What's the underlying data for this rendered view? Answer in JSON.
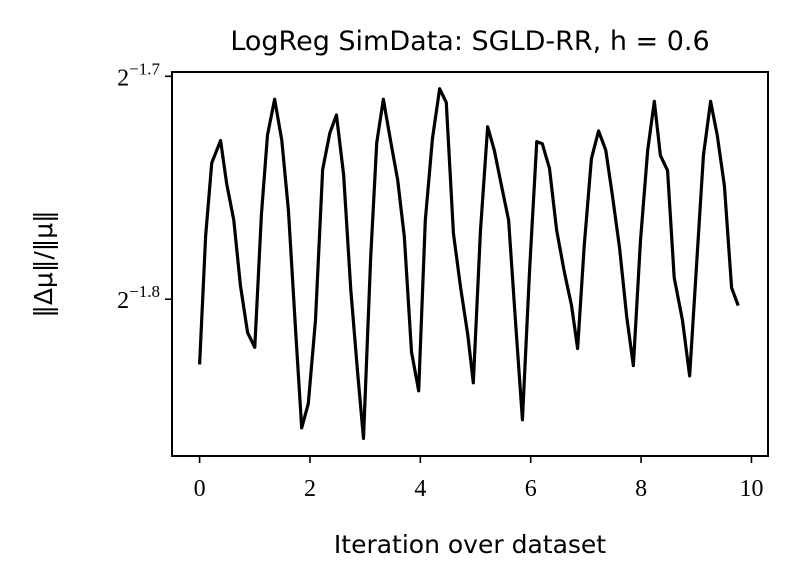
{
  "chart_data": {
    "type": "line",
    "title": "LogReg SimData: SGLD-RR, h = 0.6",
    "xlabel": "Iteration over dataset",
    "ylabel": "‖Δμ‖/‖μ‖",
    "x": [
      0,
      0.11,
      0.22,
      0.38,
      0.49,
      0.62,
      0.74,
      0.87,
      1.0,
      1.12,
      1.23,
      1.36,
      1.49,
      1.61,
      1.74,
      1.85,
      1.97,
      2.1,
      2.23,
      2.36,
      2.48,
      2.61,
      2.74,
      2.86,
      2.97,
      3.1,
      3.21,
      3.33,
      3.46,
      3.59,
      3.71,
      3.84,
      3.97,
      4.09,
      4.22,
      4.35,
      4.47,
      4.6,
      4.73,
      4.86,
      4.96,
      5.09,
      5.22,
      5.34,
      5.47,
      5.6,
      5.72,
      5.85,
      5.98,
      6.11,
      6.21,
      6.34,
      6.47,
      6.61,
      6.74,
      6.85,
      6.97,
      7.1,
      7.23,
      7.36,
      7.48,
      7.61,
      7.74,
      7.86,
      7.99,
      8.12,
      8.24,
      8.35,
      8.48,
      8.6,
      8.75,
      8.88,
      9.0,
      9.13,
      9.26,
      9.38,
      9.51,
      9.64,
      9.76
    ],
    "series": [
      {
        "color": "#000000",
        "values": [
          0.2814,
          0.2929,
          0.2996,
          0.3017,
          0.2977,
          0.2943,
          0.2884,
          0.2842,
          0.2829,
          0.2948,
          0.3022,
          0.3056,
          0.3017,
          0.2952,
          0.2844,
          0.2759,
          0.278,
          0.2853,
          0.299,
          0.3024,
          0.3041,
          0.2985,
          0.288,
          0.2809,
          0.275,
          0.2909,
          0.3015,
          0.3056,
          0.3017,
          0.298,
          0.2928,
          0.2825,
          0.2791,
          0.2943,
          0.3019,
          0.3066,
          0.3053,
          0.2931,
          0.2882,
          0.284,
          0.2798,
          0.2934,
          0.303,
          0.3008,
          0.2975,
          0.2943,
          0.2855,
          0.2766,
          0.2898,
          0.3016,
          0.3014,
          0.2991,
          0.2934,
          0.2896,
          0.2866,
          0.2828,
          0.292,
          0.3,
          0.3026,
          0.3008,
          0.2966,
          0.2918,
          0.2856,
          0.2813,
          0.2925,
          0.3008,
          0.3054,
          0.3003,
          0.2989,
          0.2891,
          0.2853,
          0.2804,
          0.2898,
          0.3003,
          0.3054,
          0.3022,
          0.2975,
          0.2882,
          0.2866
        ]
      }
    ],
    "xlim": [
      -0.5,
      10.3
    ],
    "xticks": [
      0,
      2,
      4,
      6,
      8,
      10
    ],
    "ylim": [
      0.2735,
      0.3082
    ],
    "yticks": [
      {
        "value": 0.30779,
        "label": "2−1.7"
      },
      {
        "value": 0.28717,
        "label": "2−1.8"
      }
    ],
    "yscale": "log2"
  }
}
